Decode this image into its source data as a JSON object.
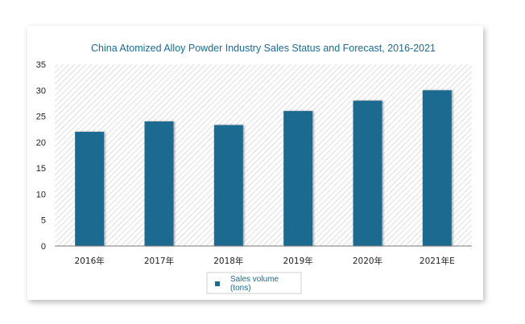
{
  "chart_data": {
    "type": "bar",
    "title": "China Atomized Alloy Powder Industry Sales Status and Forecast, 2016-2021",
    "categories": [
      "2016年",
      "2017年",
      "2018年",
      "2019年",
      "2020年",
      "2021年E"
    ],
    "series": [
      {
        "name": "Sales volume (tons)",
        "values": [
          22,
          24,
          23.3,
          26,
          28,
          30
        ]
      }
    ],
    "legend": {
      "line1": "Sales volume",
      "line2": "(tons)",
      "placement": "bottom"
    },
    "y_ticks": [
      0,
      5,
      10,
      15,
      20,
      25,
      30,
      35
    ],
    "ylim": [
      0,
      35
    ],
    "grid": false,
    "colors": {
      "bar": "#1b6b8f",
      "title": "#1b6b8f",
      "plot_hatch": "#cfcfcf"
    }
  }
}
